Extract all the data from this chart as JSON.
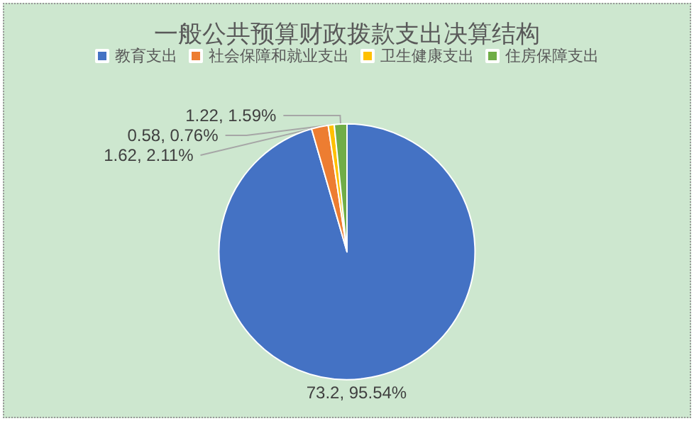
{
  "chart_data": {
    "type": "pie",
    "title": "一般公共预算财政拨款支出决算结构",
    "categories": [
      "教育支出",
      "社会保障和就业支出",
      "卫生健康支出",
      "住房保障支出"
    ],
    "values": [
      73.2,
      1.62,
      0.58,
      1.22
    ],
    "colors": [
      "#4472c4",
      "#ed7d31",
      "#ffc000",
      "#70ad47"
    ],
    "value_labels": [
      "73.2, 95.54%",
      "1.62, 2.11%",
      "0.58, 0.76%",
      "1.22, 1.59%"
    ],
    "legend": "top"
  }
}
